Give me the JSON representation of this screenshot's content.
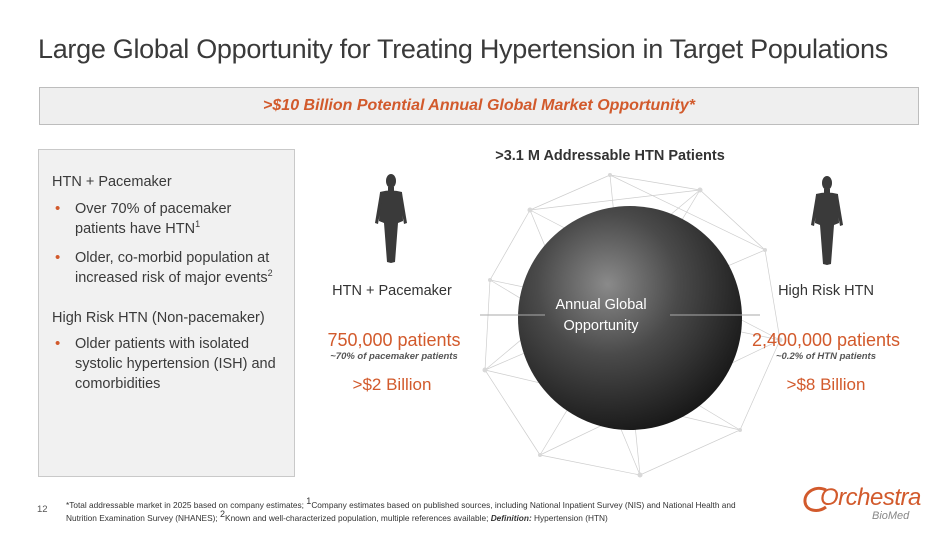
{
  "title": "Large Global Opportunity for Treating Hypertension in Target Populations",
  "banner": ">$10 Billion Potential Annual Global Market Opportunity*",
  "left_panel": {
    "section1_heading": "HTN + Pacemaker",
    "section1_bullets": [
      {
        "text": "Over 70% of pacemaker patients have HTN",
        "sup": "1"
      },
      {
        "text": "Older, co-morbid population at increased risk of major events",
        "sup": "2"
      }
    ],
    "section2_heading": "High Risk HTN (Non-pacemaker)",
    "section2_bullets": [
      {
        "text": "Older patients with isolated systolic hypertension (ISH) and comorbidities"
      }
    ]
  },
  "center": {
    "addressable": ">3.1 M Addressable HTN Patients",
    "globe_label_line1": "Annual Global",
    "globe_label_line2": "Opportunity"
  },
  "left_column": {
    "label": "HTN + Pacemaker",
    "count": "750,000 patients",
    "sub": "~70% of pacemaker patients",
    "value": ">$2 Billion"
  },
  "right_column": {
    "label": "High Risk HTN",
    "count": "2,400,000 patients",
    "sub": "~0.2% of HTN patients",
    "value": ">$8 Billion"
  },
  "footnote": {
    "part1": "*Total addressable market in 2025 based on company estimates; ",
    "sup1": "1",
    "part2": "Company estimates based on published sources, including National Inpatient Survey (NIS) and National Health and Nutrition Examination Survey (NHANES); ",
    "sup2": "2",
    "part3": "Known and well-characterized population, multiple references available; ",
    "definition_label": "Definition:",
    "part4": " Hypertension (HTN)"
  },
  "page_number": "12",
  "logo": {
    "main": "Orchestra",
    "sub": "BioMed"
  },
  "colors": {
    "accent": "#d25a2c",
    "text": "#3a3a3a",
    "panel": "#f1f1f1"
  },
  "icons": [
    "human-figure-icon",
    "globe-network-icon"
  ]
}
